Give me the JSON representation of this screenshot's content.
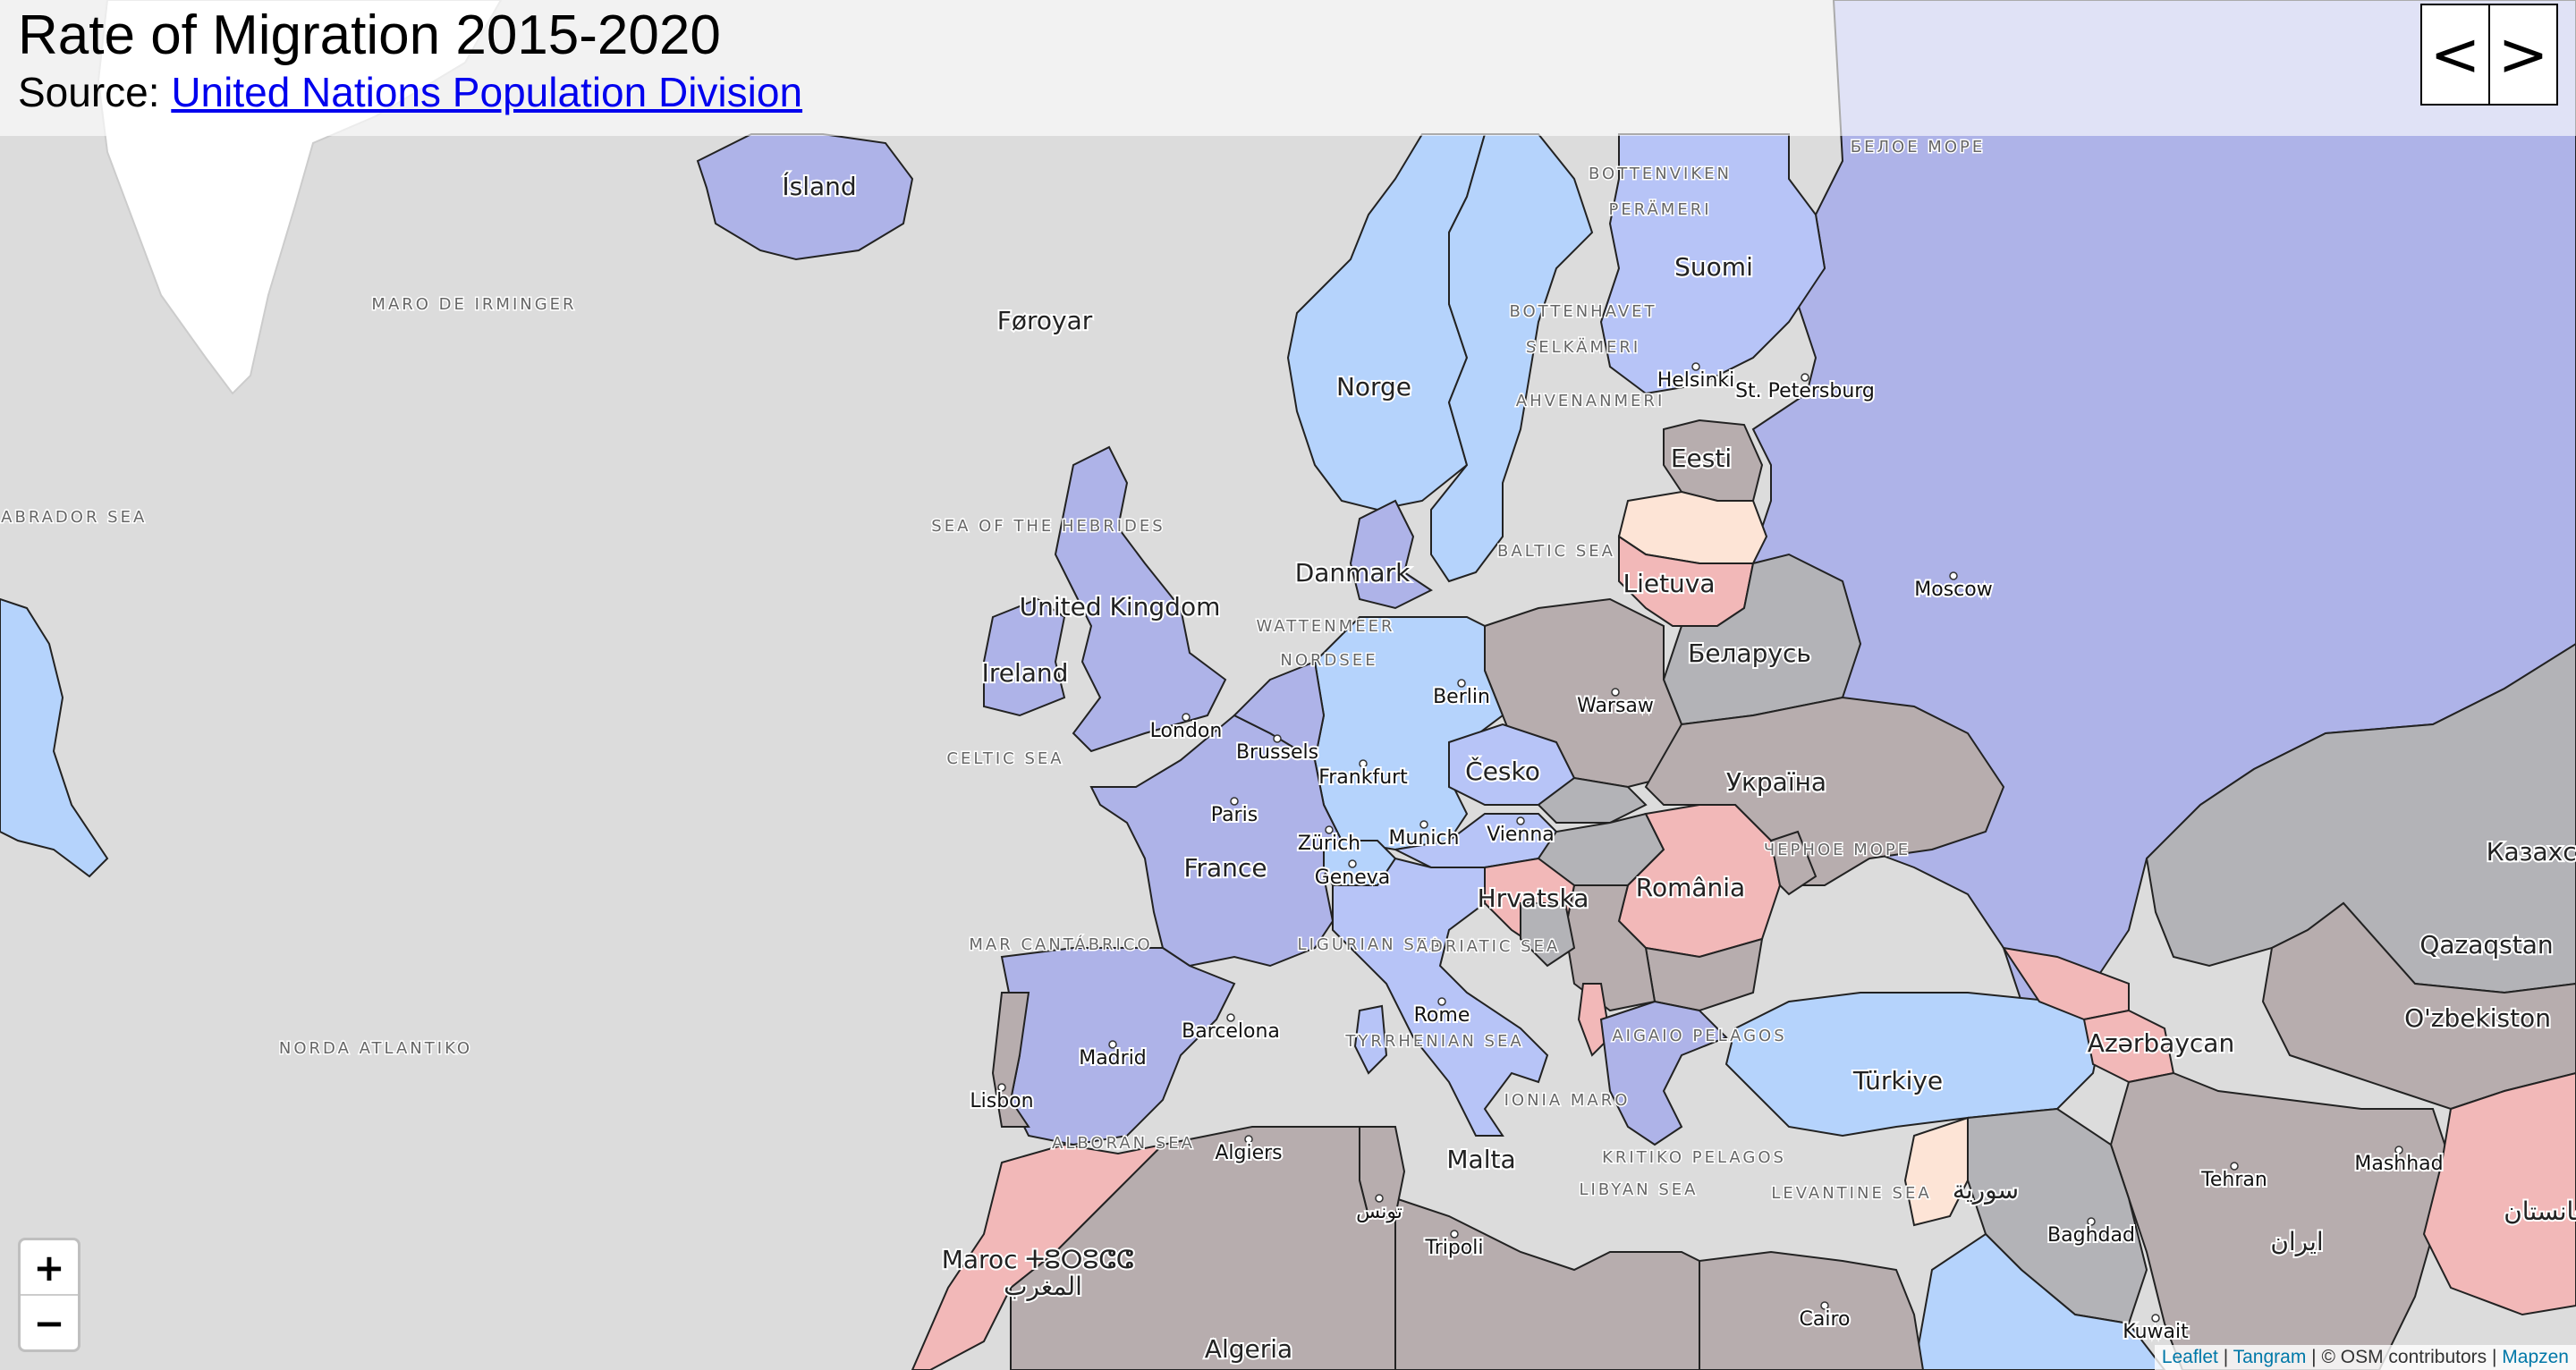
{
  "header": {
    "title": "Rate of Migration 2015-2020",
    "source_prefix": "Source: ",
    "source_link": "United Nations Population Division"
  },
  "nav": {
    "prev": "<",
    "next": ">"
  },
  "zoom": {
    "in": "+",
    "out": "−"
  },
  "attribution": {
    "leaflet": "Leaflet",
    "tangram": "Tangram",
    "osm": "© OSM contributors",
    "mapzen": "Mapzen"
  },
  "colors": {
    "water": "#dcdcdc",
    "land_default": "#ffffff",
    "positive_strong": "#aeb3e8",
    "positive_mid": "#b7c4f7",
    "positive_light": "#b5d3fc",
    "neutral": "#b7adae",
    "neutral_gray": "#b3b3b7",
    "negative_light": "#f2b8b8",
    "negative_pale": "#fde4d6"
  },
  "country_labels": [
    "Ísland",
    "Føroyar",
    "Norge",
    "Suomi",
    "Eesti",
    "Lietuva",
    "Danmark",
    "United Kingdom",
    "Ireland",
    "Беларусь",
    "Україна",
    "Česko",
    "France",
    "România",
    "Hrvatska",
    "Türkiye",
    "Azərbaycan",
    "Qazaqstan",
    "O'zbekiston",
    "Казахстан",
    "Maroc ⵜⵓⵔⵓⵛⵛ",
    "المغرب",
    "Algeria",
    "سورية",
    "ایران",
    "افغانستان",
    "Malta"
  ],
  "city_labels": [
    "Moscow",
    "Helsinki",
    "St. Petersburg",
    "Berlin",
    "Warsaw",
    "London",
    "Brussels",
    "Paris",
    "Frankfurt",
    "Munich",
    "Vienna",
    "Zürich",
    "Geneva",
    "Rome",
    "Madrid",
    "Barcelona",
    "Lisbon",
    "Algiers",
    "تونس",
    "Tripoli",
    "Cairo",
    "Baghdad",
    "Tehran",
    "Mashhad",
    "Kuwait"
  ],
  "sea_labels": [
    "MARO DE IRMINGER",
    "LABRADOR SEA",
    "NORDA ATLANTIKO",
    "CELTIC SEA",
    "MAR CANTÁBRICO",
    "ALBORAN SEA",
    "LIGURIAN SEA",
    "TYRRHENIAN SEA",
    "ADRIATIC SEA",
    "IONIA MARO",
    "LIBYAN SEA",
    "LEVANTINE SEA",
    "BALTIC SEA",
    "WATTENMEER",
    "NORDSEE",
    "BOTTENVIKEN",
    "PERÄMERI",
    "BOTTENHAVET",
    "SELKÄMERI",
    "AHVENANMERI",
    "БЕЛОЕ МОРЕ",
    "ЧЕРНОЕ МОРЕ",
    "SEA OF THE HEBRIDES",
    "AIGAIO PELAGOS",
    "KRITIKO PELAGOS"
  ]
}
